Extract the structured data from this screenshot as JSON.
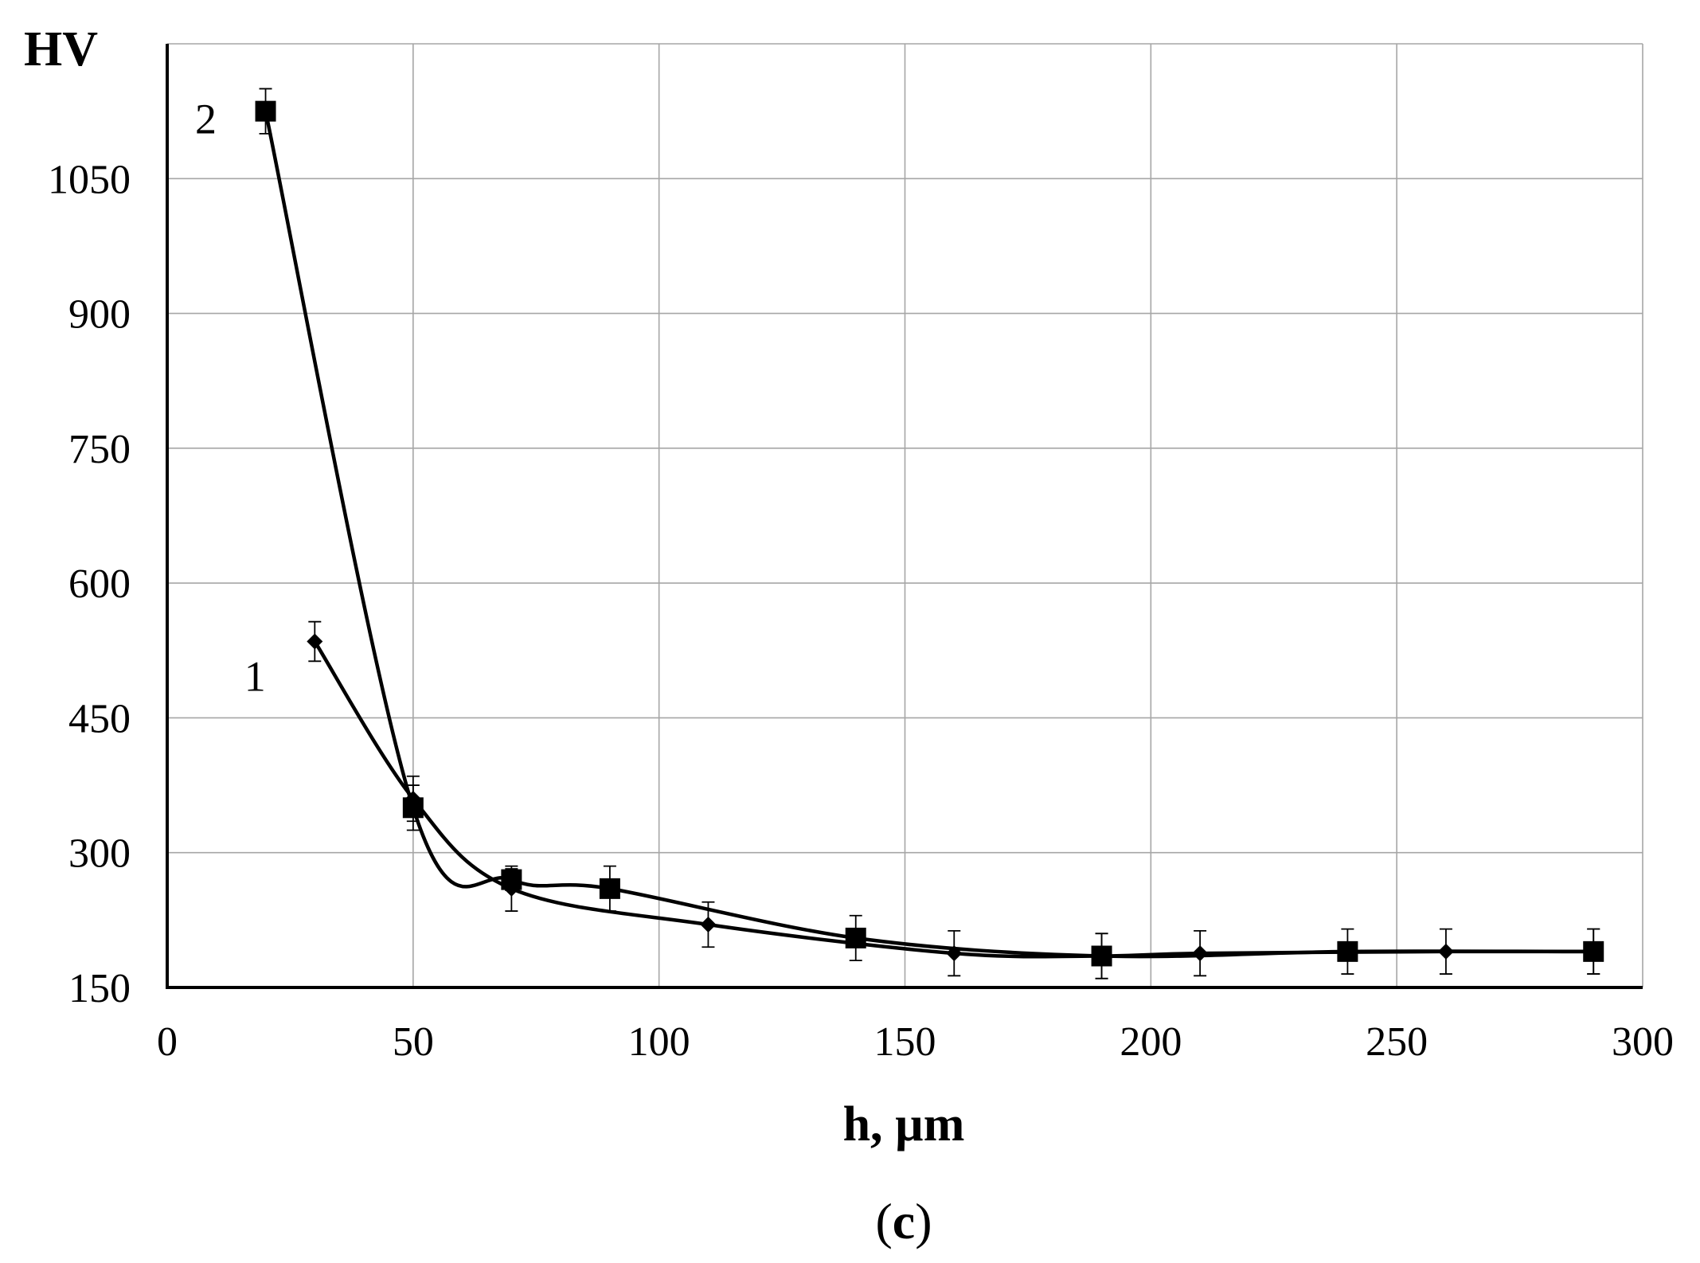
{
  "chart_data": {
    "type": "line",
    "ylabel": "HV",
    "xlabel": "h, µm",
    "caption": {
      "open": "(",
      "letter": "c",
      "close": ")"
    },
    "xlim": [
      0,
      300
    ],
    "ylim": [
      150,
      1200
    ],
    "xticks": [
      0,
      50,
      100,
      150,
      200,
      250,
      300
    ],
    "yticks": [
      150,
      300,
      450,
      600,
      750,
      900,
      1050
    ],
    "grid": true,
    "smooth": true,
    "series": [
      {
        "name": "1",
        "marker": "diamond",
        "x": [
          30,
          50,
          70,
          110,
          160,
          190,
          210,
          260,
          290
        ],
        "y": [
          535,
          360,
          260,
          220,
          188,
          185,
          188,
          190,
          190
        ],
        "err": [
          22,
          25,
          25,
          25,
          25,
          25,
          25,
          25,
          25
        ]
      },
      {
        "name": "2",
        "marker": "square",
        "x": [
          20,
          50,
          70,
          90,
          140,
          190,
          240,
          290
        ],
        "y": [
          1125,
          350,
          270,
          260,
          205,
          185,
          190,
          190
        ],
        "err": [
          25,
          25,
          12,
          25,
          25,
          25,
          25,
          25
        ]
      }
    ],
    "series_label_positions": [
      "left-of-start",
      "left-of-start"
    ]
  }
}
